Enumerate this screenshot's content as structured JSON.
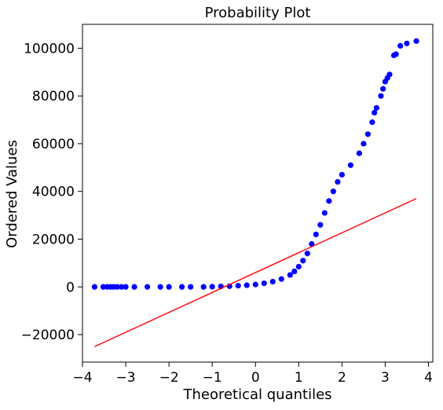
{
  "chart_data": {
    "type": "scatter",
    "title": "Probability Plot",
    "xlabel": "Theoretical quantiles",
    "ylabel": "Ordered Values",
    "xlim": [
      -4.0,
      4.1
    ],
    "ylim": [
      -31500,
      110000
    ],
    "x_ticks": [
      -4,
      -3,
      -2,
      -1,
      0,
      1,
      2,
      3,
      4
    ],
    "x_tick_labels": [
      "−4",
      "−3",
      "−2",
      "−1",
      "0",
      "1",
      "2",
      "3",
      "4"
    ],
    "y_ticks": [
      -20000,
      0,
      20000,
      40000,
      60000,
      80000,
      100000
    ],
    "y_tick_labels": [
      "−20000",
      "0",
      "20000",
      "40000",
      "60000",
      "80000",
      "100000"
    ],
    "grid": false,
    "legend": "none",
    "series": [
      {
        "kind": "points",
        "color": "#0000ff",
        "points": [
          [
            -3.72,
            0
          ],
          [
            -3.52,
            0
          ],
          [
            -3.43,
            0
          ],
          [
            -3.35,
            0
          ],
          [
            -3.28,
            0
          ],
          [
            -3.2,
            0
          ],
          [
            -3.1,
            0
          ],
          [
            -3.0,
            0
          ],
          [
            -2.8,
            0
          ],
          [
            -2.5,
            0
          ],
          [
            -2.2,
            0
          ],
          [
            -2.0,
            0
          ],
          [
            -1.7,
            0
          ],
          [
            -1.5,
            0
          ],
          [
            -1.2,
            0
          ],
          [
            -1.0,
            100
          ],
          [
            -0.8,
            200
          ],
          [
            -0.6,
            300
          ],
          [
            -0.4,
            500
          ],
          [
            -0.2,
            700
          ],
          [
            0.0,
            1000
          ],
          [
            0.2,
            1500
          ],
          [
            0.4,
            2200
          ],
          [
            0.6,
            3300
          ],
          [
            0.8,
            5000
          ],
          [
            0.9,
            6500
          ],
          [
            1.0,
            8500
          ],
          [
            1.1,
            11000
          ],
          [
            1.2,
            14000
          ],
          [
            1.3,
            18000
          ],
          [
            1.4,
            22000
          ],
          [
            1.5,
            26000
          ],
          [
            1.6,
            31000
          ],
          [
            1.7,
            36000
          ],
          [
            1.8,
            40000
          ],
          [
            1.9,
            44000
          ],
          [
            2.0,
            47000
          ],
          [
            2.2,
            51000
          ],
          [
            2.4,
            56000
          ],
          [
            2.5,
            60000
          ],
          [
            2.6,
            64000
          ],
          [
            2.7,
            69000
          ],
          [
            2.75,
            73000
          ],
          [
            2.8,
            75000
          ],
          [
            2.9,
            80000
          ],
          [
            2.95,
            83000
          ],
          [
            3.0,
            86000
          ],
          [
            3.05,
            87500
          ],
          [
            3.1,
            89000
          ],
          [
            3.2,
            97000
          ],
          [
            3.25,
            97500
          ],
          [
            3.35,
            101000
          ],
          [
            3.5,
            102000
          ],
          [
            3.72,
            103000
          ]
        ]
      },
      {
        "kind": "fit-line",
        "color": "#ff0000",
        "x": [
          -3.72,
          3.72
        ],
        "y": [
          -25000,
          37000
        ]
      }
    ]
  }
}
